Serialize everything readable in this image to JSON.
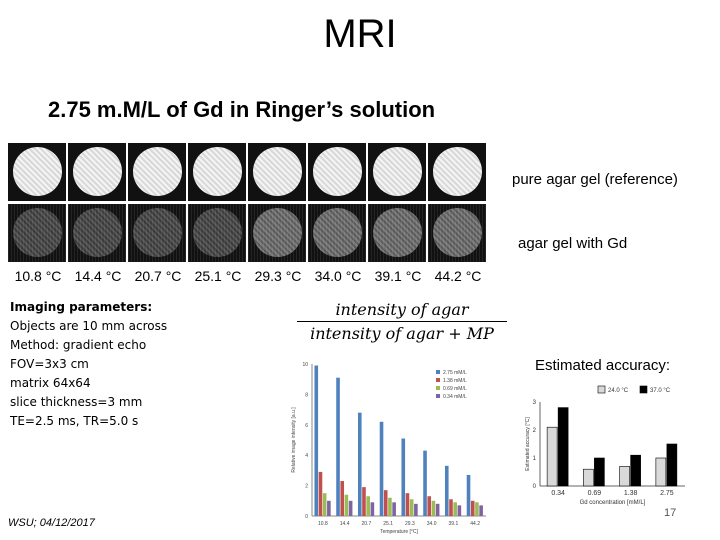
{
  "slide": {
    "title": "MRI",
    "subtitle": "2.75 m.M/L of Gd in Ringer’s solution",
    "footer": "WSU; 04/12/2017",
    "page_number": "17"
  },
  "mri_panel": {
    "temperatures": [
      "10.8 °C",
      "14.4 °C",
      "20.7 °C",
      "25.1 °C",
      "29.3 °C",
      "34.0 °C",
      "39.1 °C",
      "44.2 °C"
    ],
    "row_labels": {
      "pure": "pure agar gel (reference)",
      "gd": "agar gel with Gd"
    }
  },
  "imaging_parameters": {
    "heading": "Imaging parameters:",
    "lines": [
      "Objects are 10 mm across",
      "Method: gradient echo",
      "FOV=3x3 cm",
      "matrix 64x64",
      "slice thickness=3 mm",
      "TE=2.5 ms, TR=5.0 s"
    ]
  },
  "formula": {
    "numerator": "intensity of agar",
    "denominator": "intensity of agar + MP"
  },
  "accuracy_label": "Estimated accuracy:",
  "chart_data": [
    {
      "type": "bar",
      "title": "",
      "xlabel": "Temperature [°C]",
      "ylabel": "Relative image intensity [a.u.]",
      "categories": [
        "10.8",
        "14.4",
        "20.7",
        "25.1",
        "29.3",
        "34.0",
        "39.1",
        "44.2"
      ],
      "ylim": [
        0,
        10
      ],
      "yticks": [
        "0",
        "2",
        "4",
        "6",
        "8",
        "10"
      ],
      "series": [
        {
          "name": "2.75 mM/L",
          "color": "#4f81bd",
          "values": [
            9.9,
            9.1,
            6.8,
            6.2,
            5.1,
            4.3,
            3.3,
            2.7
          ]
        },
        {
          "name": "1.38 mM/L",
          "color": "#c0504d",
          "values": [
            2.9,
            2.3,
            1.9,
            1.7,
            1.5,
            1.3,
            1.1,
            1.0
          ]
        },
        {
          "name": "0.69 mM/L",
          "color": "#9bbb59",
          "values": [
            1.5,
            1.4,
            1.3,
            1.2,
            1.1,
            1.0,
            0.9,
            0.9
          ]
        },
        {
          "name": "0.34 mM/L",
          "color": "#8064a2",
          "values": [
            1.0,
            1.0,
            0.9,
            0.9,
            0.8,
            0.8,
            0.7,
            0.7
          ]
        }
      ],
      "legend": "top-right",
      "grid": false
    },
    {
      "type": "bar",
      "title": "",
      "xlabel": "Gd concentration [mM/L]",
      "ylabel": "Estimated accuracy [°C]",
      "categories": [
        "0.34",
        "0.69",
        "1.38",
        "2.75"
      ],
      "ylim": [
        0,
        3
      ],
      "yticks": [
        "0",
        "1",
        "2",
        "3"
      ],
      "series": [
        {
          "name": "24.0 °C",
          "color": "#d9d9d9",
          "values": [
            2.1,
            0.6,
            0.7,
            1.0
          ]
        },
        {
          "name": "37.0 °C",
          "color": "#000000",
          "values": [
            2.8,
            1.0,
            1.1,
            1.5
          ]
        }
      ],
      "legend": "top",
      "grid": false
    }
  ]
}
